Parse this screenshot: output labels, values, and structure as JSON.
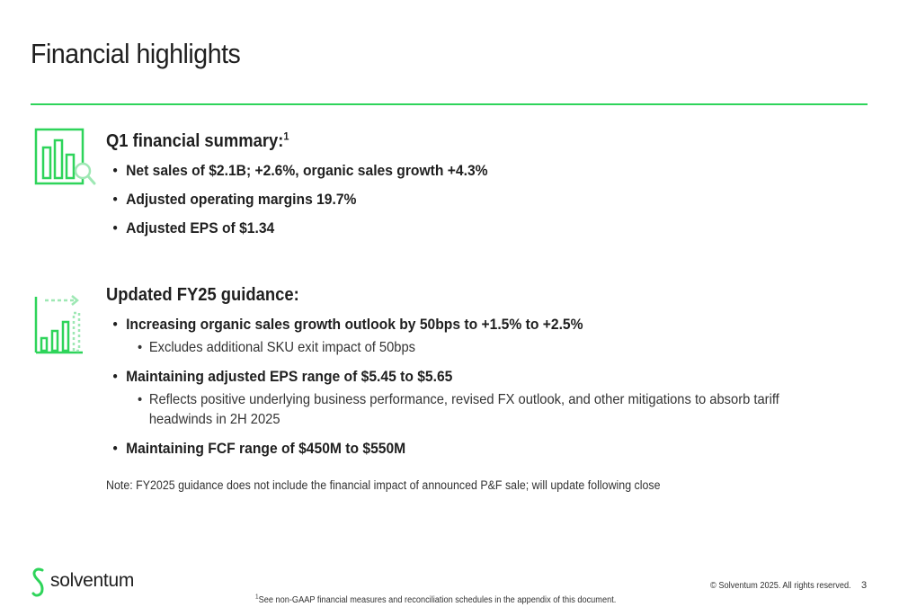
{
  "title": "Financial highlights",
  "colors": {
    "accent": "#2ed45a",
    "accent_light": "#9ee8b4",
    "text": "#1f1f1f"
  },
  "icons": {
    "summary": "bar-chart-magnifier-icon",
    "guidance": "growth-chart-arrow-icon"
  },
  "summary": {
    "heading": "Q1 financial summary:",
    "heading_sup": "1",
    "bullets": [
      "Net sales of $2.1B; +2.6%, organic sales growth +4.3%",
      "Adjusted operating margins 19.7%",
      "Adjusted EPS of $1.34"
    ]
  },
  "guidance": {
    "heading": "Updated FY25 guidance:",
    "items": [
      {
        "text": "Increasing organic sales growth outlook by 50bps to +1.5% to +2.5%",
        "sub": "Excludes additional SKU exit impact of 50bps"
      },
      {
        "text": "Maintaining adjusted EPS range of $5.45 to $5.65",
        "sub": "Reflects positive underlying business performance, revised FX outlook, and other mitigations to absorb tariff headwinds in 2H 2025"
      },
      {
        "text": "Maintaining FCF range of $450M to $550M"
      }
    ]
  },
  "note": "Note: FY2025 guidance does not include the financial impact of announced P&F sale; will update following close",
  "footer": {
    "logo_text": "solventum",
    "copyright": "© Solventum 2025. All rights reserved.",
    "page_number": "3",
    "footnote_sup": "1",
    "footnote": "See non-GAAP financial measures and reconciliation schedules in the appendix of this document."
  }
}
